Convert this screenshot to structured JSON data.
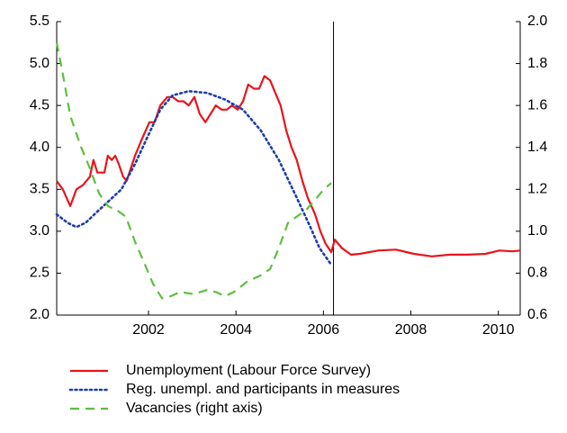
{
  "chart_data": {
    "type": "line",
    "xlim": [
      1999.9,
      2010.5
    ],
    "xticks": [
      2002,
      2004,
      2006,
      2008,
      2010
    ],
    "ylim": [
      2.0,
      5.5
    ],
    "yticks": [
      {
        "value": 2.0,
        "label": "2.0"
      },
      {
        "value": 2.5,
        "label": "2.5"
      },
      {
        "value": 3.0,
        "label": "3.0"
      },
      {
        "value": 3.5,
        "label": "3.5"
      },
      {
        "value": 4.0,
        "label": "4.0"
      },
      {
        "value": 4.5,
        "label": "4.5"
      },
      {
        "value": 5.0,
        "label": "5.0"
      },
      {
        "value": 5.5,
        "label": "5.5"
      }
    ],
    "y2lim": [
      0.6,
      2.0
    ],
    "y2ticks": [
      0.6,
      0.8,
      {
        "value": 1.0,
        "label": "1.0"
      },
      1.2,
      1.4,
      1.6,
      1.8,
      {
        "value": 2.0,
        "label": "2.0"
      }
    ],
    "vertical_line_x": 2006.23,
    "series": [
      {
        "name": "Unemployment (Labour Force Survey)",
        "color": "#e8141b",
        "dash": "solid",
        "x": [
          1999.9,
          2000.04,
          2000.21,
          2000.35,
          2000.5,
          2000.66,
          2000.74,
          2000.83,
          2000.99,
          2001.07,
          2001.16,
          2001.24,
          2001.32,
          2001.42,
          2001.5,
          2001.69,
          2001.85,
          2002.02,
          2002.14,
          2002.27,
          2002.43,
          2002.55,
          2002.68,
          2002.8,
          2002.92,
          2003.05,
          2003.17,
          2003.3,
          2003.42,
          2003.54,
          2003.67,
          2003.79,
          2003.91,
          2004.04,
          2004.16,
          2004.28,
          2004.41,
          2004.53,
          2004.65,
          2004.78,
          2004.9,
          2005.02,
          2005.15,
          2005.27,
          2005.39,
          2005.52,
          2005.64,
          2005.81,
          2005.93,
          2006.05,
          2006.18,
          2006.26,
          2006.42,
          2006.63,
          2006.83,
          2007.25,
          2007.66,
          2008.07,
          2008.48,
          2008.89,
          2009.3,
          2009.71,
          2010.02,
          2010.33,
          2010.5
        ],
        "values": [
          3.6,
          3.5,
          3.3,
          3.5,
          3.55,
          3.65,
          3.85,
          3.7,
          3.7,
          3.9,
          3.85,
          3.9,
          3.8,
          3.65,
          3.6,
          3.9,
          4.1,
          4.3,
          4.3,
          4.5,
          4.6,
          4.6,
          4.55,
          4.55,
          4.5,
          4.6,
          4.4,
          4.3,
          4.4,
          4.5,
          4.45,
          4.45,
          4.5,
          4.45,
          4.55,
          4.75,
          4.7,
          4.7,
          4.85,
          4.8,
          4.65,
          4.5,
          4.2,
          4.0,
          3.85,
          3.6,
          3.4,
          3.2,
          3.0,
          2.85,
          2.75,
          2.9,
          2.8,
          2.72,
          2.73,
          2.77,
          2.78,
          2.73,
          2.7,
          2.72,
          2.72,
          2.73,
          2.77,
          2.76,
          2.77
        ]
      },
      {
        "name": "Reg. unempl. and participants in measures",
        "color": "#1f3ea8",
        "dash": "dotted",
        "x": [
          1999.9,
          2000.15,
          2000.35,
          2000.56,
          2000.76,
          2001.07,
          2001.38,
          2001.69,
          2002.0,
          2002.27,
          2002.55,
          2002.92,
          2003.34,
          2003.75,
          2004.16,
          2004.57,
          2004.98,
          2005.39,
          2005.7,
          2005.91,
          2006.18
        ],
        "values": [
          3.2,
          3.1,
          3.05,
          3.1,
          3.2,
          3.35,
          3.5,
          3.8,
          4.15,
          4.45,
          4.62,
          4.67,
          4.65,
          4.57,
          4.45,
          4.2,
          3.85,
          3.4,
          3.05,
          2.8,
          2.6
        ]
      },
      {
        "name": "Vacancies (right axis)",
        "color": "#5cbf3e",
        "dash": "dashed",
        "axis": "y2",
        "x": [
          1999.9,
          2000.04,
          2000.21,
          2000.46,
          2000.66,
          2000.87,
          2001.07,
          2001.28,
          2001.48,
          2001.69,
          2001.9,
          2002.1,
          2002.31,
          2002.51,
          2002.72,
          2003.03,
          2003.34,
          2003.54,
          2003.75,
          2003.95,
          2004.26,
          2004.57,
          2004.78,
          2004.98,
          2005.19,
          2005.39,
          2005.6,
          2005.81,
          2006.01,
          2006.18
        ],
        "values": [
          1.9,
          1.75,
          1.55,
          1.4,
          1.3,
          1.18,
          1.12,
          1.1,
          1.07,
          0.95,
          0.85,
          0.75,
          0.68,
          0.69,
          0.71,
          0.7,
          0.72,
          0.71,
          0.69,
          0.71,
          0.76,
          0.79,
          0.82,
          0.92,
          1.04,
          1.07,
          1.1,
          1.15,
          1.2,
          1.23
        ]
      }
    ]
  }
}
